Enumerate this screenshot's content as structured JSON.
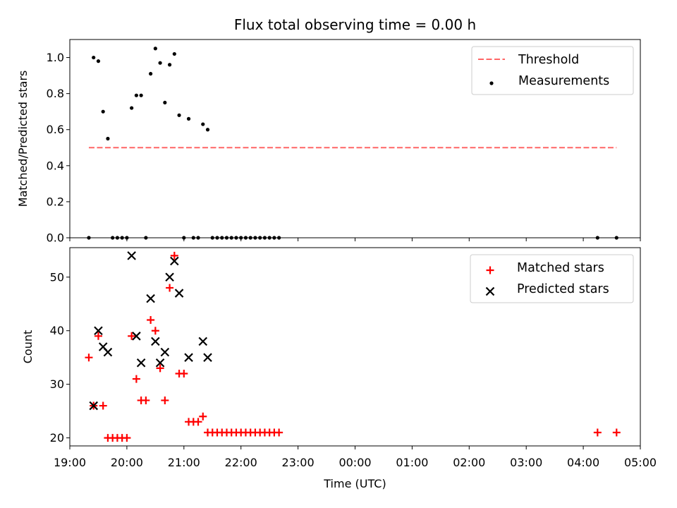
{
  "chart_data": [
    {
      "type": "scatter",
      "title": "Flux total observing time = 0.00 h",
      "ylabel": "Matched/Predicted stars",
      "xlabel": "",
      "ylim": [
        0,
        1.1
      ],
      "xlim": [
        "19:00",
        "05:00"
      ],
      "yticks": [
        "0.0",
        "0.2",
        "0.4",
        "0.6",
        "0.8",
        "1.0"
      ],
      "legend_position": "top-right",
      "series": [
        {
          "name": "Threshold",
          "kind": "dashed-line",
          "color": "#ff6666",
          "x": [
            "19:20",
            "04:35"
          ],
          "y": [
            0.5,
            0.5
          ]
        },
        {
          "name": "Measurements",
          "kind": "dot",
          "color": "#000000",
          "x": [
            "19:20",
            "19:25",
            "19:30",
            "19:35",
            "19:40",
            "19:45",
            "19:50",
            "19:55",
            "20:00",
            "20:05",
            "20:10",
            "20:15",
            "20:20",
            "20:25",
            "20:30",
            "20:35",
            "20:40",
            "20:45",
            "20:50",
            "20:55",
            "21:00",
            "21:05",
            "21:10",
            "21:15",
            "21:20",
            "21:25",
            "21:30",
            "21:35",
            "21:40",
            "21:45",
            "21:50",
            "21:55",
            "22:00",
            "22:05",
            "22:10",
            "22:15",
            "22:20",
            "22:25",
            "22:30",
            "22:35",
            "22:40",
            "04:15",
            "04:35"
          ],
          "y": [
            0.0,
            1.0,
            0.98,
            0.7,
            0.55,
            0.0,
            0.0,
            0.0,
            0.0,
            0.72,
            0.79,
            0.79,
            0.0,
            0.91,
            1.05,
            0.97,
            0.75,
            0.96,
            1.02,
            0.68,
            0.0,
            0.66,
            0.0,
            0.0,
            0.63,
            0.6,
            0.0,
            0.0,
            0.0,
            0.0,
            0.0,
            0.0,
            0.0,
            0.0,
            0.0,
            0.0,
            0.0,
            0.0,
            0.0,
            0.0,
            0.0,
            0.0,
            0.0
          ]
        }
      ]
    },
    {
      "type": "scatter",
      "title": "",
      "ylabel": "Count",
      "xlabel": "Time (UTC)",
      "ylim": [
        18.5,
        55.5
      ],
      "xlim": [
        "19:00",
        "05:00"
      ],
      "xticks": [
        "19:00",
        "20:00",
        "21:00",
        "22:00",
        "23:00",
        "00:00",
        "01:00",
        "02:00",
        "03:00",
        "04:00",
        "05:00"
      ],
      "yticks": [
        "20",
        "30",
        "40",
        "50"
      ],
      "legend_position": "top-right",
      "series": [
        {
          "name": "Matched stars",
          "kind": "plus",
          "color": "#ff0000",
          "x": [
            "19:20",
            "19:25",
            "19:30",
            "19:35",
            "19:40",
            "19:45",
            "19:50",
            "19:55",
            "20:00",
            "20:05",
            "20:10",
            "20:15",
            "20:20",
            "20:25",
            "20:30",
            "20:35",
            "20:40",
            "20:45",
            "20:50",
            "20:55",
            "21:00",
            "21:05",
            "21:10",
            "21:15",
            "21:20",
            "21:25",
            "21:30",
            "21:35",
            "21:40",
            "21:45",
            "21:50",
            "21:55",
            "22:00",
            "22:05",
            "22:10",
            "22:15",
            "22:20",
            "22:25",
            "22:30",
            "22:35",
            "22:40",
            "04:15",
            "04:35"
          ],
          "y": [
            35,
            26,
            39,
            26,
            20,
            20,
            20,
            20,
            20,
            39,
            31,
            27,
            27,
            42,
            40,
            33,
            27,
            48,
            54,
            32,
            32,
            23,
            23,
            23,
            24,
            21,
            21,
            21,
            21,
            21,
            21,
            21,
            21,
            21,
            21,
            21,
            21,
            21,
            21,
            21,
            21,
            21,
            21
          ]
        },
        {
          "name": "Predicted stars",
          "kind": "x",
          "color": "#000000",
          "x": [
            "19:25",
            "19:30",
            "19:35",
            "19:40",
            "20:05",
            "20:10",
            "20:15",
            "20:25",
            "20:30",
            "20:35",
            "20:40",
            "20:45",
            "20:50",
            "20:55",
            "21:05",
            "21:20",
            "21:25"
          ],
          "y": [
            26,
            40,
            37,
            36,
            54,
            39,
            34,
            46,
            38,
            34,
            36,
            50,
            53,
            47,
            35,
            38,
            35
          ]
        }
      ]
    }
  ]
}
